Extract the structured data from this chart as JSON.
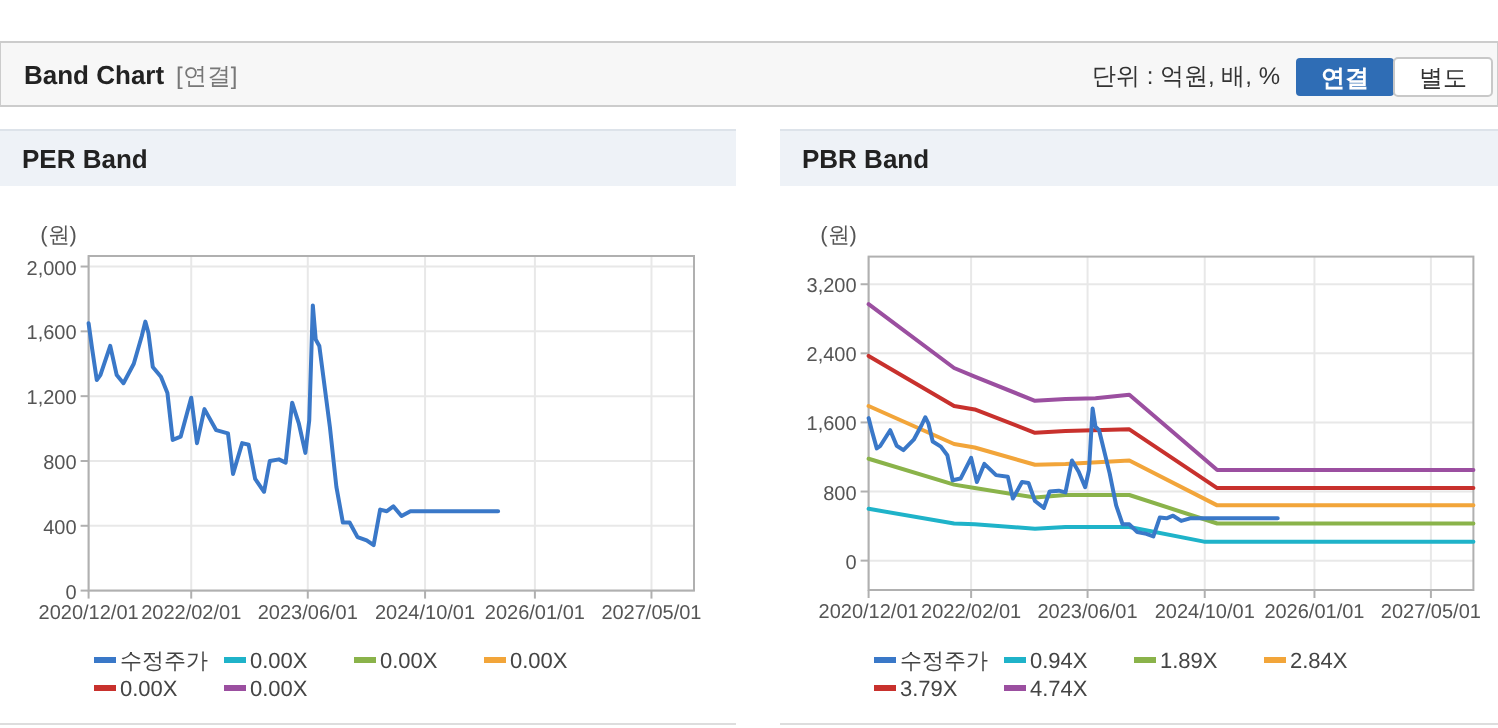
{
  "chart_data": [
    {
      "type": "other",
      "title": "Band Chart",
      "subtitle": "[연결]",
      "annotations": [
        "단위 : 억원, 배, %",
        "연결",
        "별도"
      ]
    },
    {
      "type": "line",
      "title": "PER Band",
      "ylabel": "(원)",
      "xlim": [
        "2020-12-01",
        "2027-10-25"
      ],
      "ylim": [
        0,
        2065
      ],
      "xticks": [
        {
          "value": "2020-12-01",
          "label": "2020/12/01"
        },
        {
          "value": "2022-02-01",
          "label": "2022/02/01"
        },
        {
          "value": "2023-06-01",
          "label": "2023/06/01"
        },
        {
          "value": "2024-10-01",
          "label": "2024/10/01"
        },
        {
          "value": "2026-01-01",
          "label": "2026/01/01"
        },
        {
          "value": "2027-05-01",
          "label": "2027/05/01"
        }
      ],
      "yticks": [
        {
          "value": 0,
          "label": "0"
        },
        {
          "value": 400,
          "label": "400"
        },
        {
          "value": 800,
          "label": "800"
        },
        {
          "value": 1200,
          "label": "1,200"
        },
        {
          "value": 1600,
          "label": "1,600"
        },
        {
          "value": 2000,
          "label": "2,000"
        }
      ],
      "grid": true,
      "legend": "bottom",
      "series": [
        {
          "name": "수정주가",
          "color": "#3a78c8",
          "x": [
            "2020-12-01",
            "2020-12-16",
            "2021-01-04",
            "2021-01-19",
            "2021-03-01",
            "2021-03-28",
            "2021-04-25",
            "2021-06-07",
            "2021-07-10",
            "2021-07-25",
            "2021-08-07",
            "2021-08-25",
            "2021-09-28",
            "2021-10-25",
            "2021-11-16",
            "2021-12-19",
            "2022-02-01",
            "2022-02-25",
            "2022-03-28",
            "2022-05-16",
            "2022-07-04",
            "2022-07-25",
            "2022-09-01",
            "2022-09-28",
            "2022-10-25",
            "2022-12-01",
            "2022-12-25",
            "2023-02-01",
            "2023-03-01",
            "2023-03-28",
            "2023-04-25",
            "2023-05-22",
            "2023-06-07",
            "2023-06-22",
            "2023-07-04",
            "2023-07-19",
            "2023-09-01",
            "2023-09-28",
            "2023-10-25",
            "2023-11-22",
            "2023-12-25",
            "2024-02-01",
            "2024-03-01",
            "2024-03-28",
            "2024-04-25",
            "2024-05-22",
            "2024-06-25",
            "2024-08-01",
            "2024-08-28",
            "2025-08-01"
          ],
          "values": [
            1650,
            1490,
            1300,
            1330,
            1510,
            1330,
            1280,
            1400,
            1570,
            1660,
            1590,
            1380,
            1320,
            1220,
            930,
            950,
            1190,
            910,
            1120,
            990,
            970,
            720,
            910,
            900,
            690,
            610,
            800,
            810,
            790,
            1160,
            1030,
            850,
            1050,
            1760,
            1550,
            1510,
            1010,
            640,
            420,
            420,
            330,
            310,
            280,
            500,
            490,
            520,
            460,
            490,
            490,
            490
          ]
        },
        {
          "name": "0.00X",
          "color": "#1fb3c9"
        },
        {
          "name": "0.00X",
          "color": "#8ab34a"
        },
        {
          "name": "0.00X",
          "color": "#f2a53a"
        },
        {
          "name": "0.00X",
          "color": "#c8312d"
        },
        {
          "name": "0.00X",
          "color": "#9b4fa0"
        }
      ]
    },
    {
      "type": "line",
      "title": "PBR Band",
      "ylabel": "(원)",
      "xlim": [
        "2020-12-01",
        "2027-10-25"
      ],
      "ylim": [
        -340,
        3520
      ],
      "xticks": [
        {
          "value": "2020-12-01",
          "label": "2020/12/01"
        },
        {
          "value": "2022-02-01",
          "label": "2022/02/01"
        },
        {
          "value": "2023-06-01",
          "label": "2023/06/01"
        },
        {
          "value": "2024-10-01",
          "label": "2024/10/01"
        },
        {
          "value": "2026-01-01",
          "label": "2026/01/01"
        },
        {
          "value": "2027-05-01",
          "label": "2027/05/01"
        }
      ],
      "yticks": [
        {
          "value": 0,
          "label": "0"
        },
        {
          "value": 800,
          "label": "800"
        },
        {
          "value": 1600,
          "label": "1,600"
        },
        {
          "value": 2400,
          "label": "2,400"
        },
        {
          "value": 3200,
          "label": "3,200"
        }
      ],
      "grid": true,
      "legend": "bottom",
      "series": [
        {
          "name": "수정주가",
          "color": "#3a78c8",
          "x": [
            "2020-12-01",
            "2020-12-16",
            "2021-01-04",
            "2021-01-19",
            "2021-03-01",
            "2021-03-28",
            "2021-04-25",
            "2021-06-07",
            "2021-07-10",
            "2021-07-25",
            "2021-08-07",
            "2021-08-25",
            "2021-09-28",
            "2021-10-25",
            "2021-11-16",
            "2021-12-19",
            "2022-02-01",
            "2022-02-25",
            "2022-03-28",
            "2022-05-16",
            "2022-07-04",
            "2022-07-25",
            "2022-09-01",
            "2022-09-28",
            "2022-10-25",
            "2022-12-01",
            "2022-12-25",
            "2023-02-01",
            "2023-03-01",
            "2023-03-28",
            "2023-04-25",
            "2023-05-22",
            "2023-06-07",
            "2023-06-22",
            "2023-07-04",
            "2023-07-19",
            "2023-09-01",
            "2023-09-28",
            "2023-10-25",
            "2023-11-22",
            "2023-12-25",
            "2024-02-01",
            "2024-03-01",
            "2024-03-28",
            "2024-04-25",
            "2024-05-22",
            "2024-06-25",
            "2024-08-01",
            "2024-08-28",
            "2025-08-01"
          ],
          "values": [
            1650,
            1490,
            1300,
            1330,
            1510,
            1330,
            1280,
            1400,
            1570,
            1660,
            1590,
            1380,
            1320,
            1220,
            930,
            950,
            1190,
            910,
            1120,
            990,
            970,
            720,
            910,
            900,
            690,
            610,
            800,
            810,
            790,
            1160,
            1030,
            850,
            1050,
            1760,
            1550,
            1510,
            1010,
            640,
            420,
            420,
            330,
            310,
            280,
            500,
            490,
            520,
            460,
            490,
            490,
            490
          ]
        },
        {
          "name": "0.94X",
          "color": "#1fb3c9",
          "x": [
            "2020-12-01",
            "2021-11-22",
            "2022-02-16",
            "2022-10-25",
            "2023-03-01",
            "2023-11-22",
            "2024-09-28",
            "2027-10-25"
          ],
          "values": [
            600,
            430,
            420,
            370,
            390,
            390,
            220,
            220
          ]
        },
        {
          "name": "1.89X",
          "color": "#8ab34a",
          "x": [
            "2020-12-01",
            "2021-11-22",
            "2022-02-16",
            "2022-10-25",
            "2023-03-01",
            "2023-11-22",
            "2024-11-22",
            "2027-10-25"
          ],
          "values": [
            1180,
            880,
            840,
            730,
            760,
            760,
            430,
            430
          ]
        },
        {
          "name": "2.84X",
          "color": "#f2a53a",
          "x": [
            "2020-12-01",
            "2021-11-22",
            "2022-02-16",
            "2022-10-25",
            "2023-03-01",
            "2023-11-22",
            "2024-11-22",
            "2027-10-25"
          ],
          "values": [
            1790,
            1350,
            1310,
            1110,
            1120,
            1160,
            640,
            640
          ]
        },
        {
          "name": "3.79X",
          "color": "#c8312d",
          "x": [
            "2020-12-01",
            "2021-11-22",
            "2022-02-16",
            "2022-10-25",
            "2023-03-01",
            "2023-11-22",
            "2024-11-22",
            "2027-10-25"
          ],
          "values": [
            2370,
            1790,
            1750,
            1480,
            1500,
            1520,
            840,
            840
          ]
        },
        {
          "name": "4.74X",
          "color": "#9b4fa0",
          "x": [
            "2020-12-01",
            "2021-11-22",
            "2022-02-16",
            "2022-10-25",
            "2023-03-01",
            "2023-07-04",
            "2023-11-22",
            "2024-11-22",
            "2027-10-25"
          ],
          "values": [
            2970,
            2230,
            2130,
            1850,
            1870,
            1880,
            1920,
            1050,
            1050
          ]
        }
      ]
    }
  ]
}
